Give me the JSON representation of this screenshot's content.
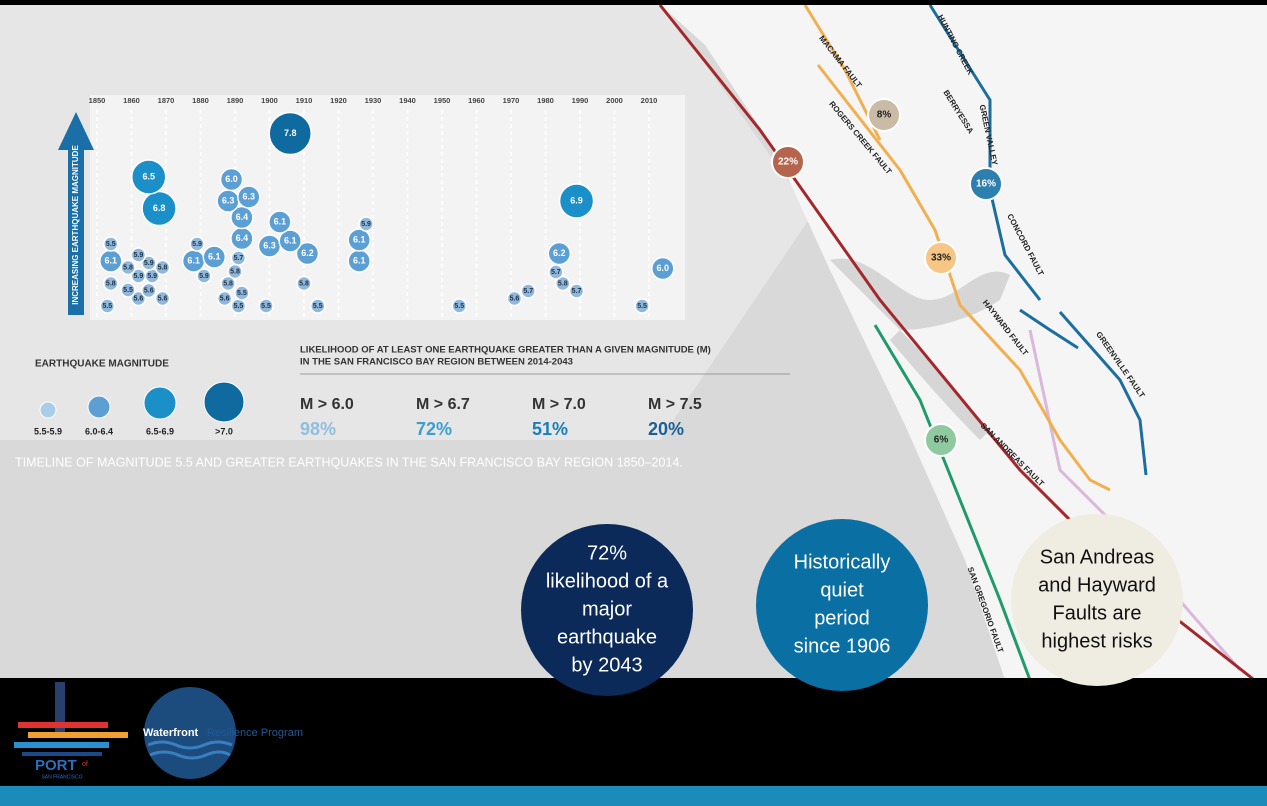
{
  "timeline": {
    "y_axis_label": "INCREASING EARTHQUAKE MAGNITUDE",
    "years": [
      1850,
      1860,
      1870,
      1880,
      1890,
      1900,
      1910,
      1920,
      1930,
      1940,
      1950,
      1960,
      1970,
      1980,
      1990,
      2000,
      2010
    ],
    "quakes": [
      {
        "year": 1906,
        "magnitude": "7.8"
      },
      {
        "year": 1989,
        "magnitude": "6.9"
      },
      {
        "year": 1868,
        "magnitude": "6.8"
      },
      {
        "year": 1865,
        "magnitude": "6.5"
      },
      {
        "year": 1892,
        "magnitude": "6.4"
      },
      {
        "year": 1892,
        "magnitude": "6.4"
      },
      {
        "year": 1888,
        "magnitude": "6.3"
      },
      {
        "year": 1894,
        "magnitude": "6.3"
      },
      {
        "year": 1900,
        "magnitude": "6.3"
      },
      {
        "year": 1911,
        "magnitude": "6.2"
      },
      {
        "year": 1984,
        "magnitude": "6.2"
      },
      {
        "year": 1854,
        "magnitude": "6.1"
      },
      {
        "year": 1878,
        "magnitude": "6.1"
      },
      {
        "year": 1884,
        "magnitude": "6.1"
      },
      {
        "year": 1906,
        "magnitude": "6.1"
      },
      {
        "year": 1903,
        "magnitude": "6.1"
      },
      {
        "year": 1926,
        "magnitude": "6.1"
      },
      {
        "year": 1926,
        "magnitude": "6.1"
      },
      {
        "year": 1889,
        "magnitude": "6.0"
      },
      {
        "year": 2014,
        "magnitude": "6.0"
      },
      {
        "year": 1866,
        "magnitude": "5.9"
      },
      {
        "year": 1862,
        "magnitude": "5.9"
      },
      {
        "year": 1865,
        "magnitude": "5.9"
      },
      {
        "year": 1862,
        "magnitude": "5.9"
      },
      {
        "year": 1879,
        "magnitude": "5.9"
      },
      {
        "year": 1881,
        "magnitude": "5.9"
      },
      {
        "year": 1928,
        "magnitude": "5.9"
      },
      {
        "year": 1854,
        "magnitude": "5.8"
      },
      {
        "year": 1859,
        "magnitude": "5.8"
      },
      {
        "year": 1869,
        "magnitude": "5.8"
      },
      {
        "year": 1888,
        "magnitude": "5.8"
      },
      {
        "year": 1890,
        "magnitude": "5.8"
      },
      {
        "year": 1910,
        "magnitude": "5.8"
      },
      {
        "year": 1985,
        "magnitude": "5.8"
      },
      {
        "year": 1891,
        "magnitude": "5.7"
      },
      {
        "year": 1975,
        "magnitude": "5.7"
      },
      {
        "year": 1983,
        "magnitude": "5.7"
      },
      {
        "year": 1989,
        "magnitude": "5.7"
      },
      {
        "year": 1862,
        "magnitude": "5.6"
      },
      {
        "year": 1865,
        "magnitude": "5.6"
      },
      {
        "year": 1869,
        "magnitude": "5.6"
      },
      {
        "year": 1887,
        "magnitude": "5.6"
      },
      {
        "year": 1971,
        "magnitude": "5.6"
      },
      {
        "year": 1853,
        "magnitude": "5.5"
      },
      {
        "year": 1854,
        "magnitude": "5.5"
      },
      {
        "year": 1859,
        "magnitude": "5.5"
      },
      {
        "year": 1891,
        "magnitude": "5.5"
      },
      {
        "year": 1892,
        "magnitude": "5.5"
      },
      {
        "year": 1899,
        "magnitude": "5.5"
      },
      {
        "year": 1914,
        "magnitude": "5.5"
      },
      {
        "year": 1955,
        "magnitude": "5.5"
      },
      {
        "year": 2008,
        "magnitude": "5.5"
      }
    ]
  },
  "legend": {
    "title": "EARTHQUAKE MAGNITUDE",
    "items": [
      "5.5-5.9",
      "6.0-6.4",
      "6.5-6.9",
      ">7.0"
    ]
  },
  "likelihood": {
    "title": [
      "LIKELIHOOD OF AT LEAST ONE EARTHQUAKE GREATER THAN A GIVEN MAGNITUDE (M)",
      "IN THE SAN FRANCISCO BAY REGION BETWEEN 2014-2043"
    ],
    "items": [
      {
        "label": "M > 6.0",
        "value": "98%"
      },
      {
        "label": "M > 6.7",
        "value": "72%"
      },
      {
        "label": "M > 7.0",
        "value": "51%"
      },
      {
        "label": "M > 7.5",
        "value": "20%"
      }
    ]
  },
  "caption": "TIMELINE OF MAGNITUDE 5.5 AND GREATER EARTHQUAKES IN THE SAN FRANCISCO BAY REGION 1850–2014.",
  "map": {
    "faults": [
      "MACAMA FAULT",
      "HUNTING CREEK",
      "BERRYESSA",
      "GREEN VALLEY",
      "ROGERS CREEK FAULT",
      "CONCORD FAULT",
      "HAYWARD FAULT",
      "GREENVILLE FAULT",
      "SAN ANDREAS FAULT",
      "SAN GREGORIO FAULT"
    ],
    "probabilities": [
      "22%",
      "8%",
      "16%",
      "33%",
      "6%"
    ]
  },
  "callouts": [
    [
      "72%",
      "likelihood of a",
      "major",
      "earthquake",
      "by 2043"
    ],
    [
      "Historically",
      "quiet",
      "period",
      "since 1906"
    ],
    [
      "San Andreas",
      "and Hayward",
      "Faults are",
      "highest risks"
    ]
  ],
  "footer": {
    "program": "Waterfront",
    "program_rest": "Resilience Program",
    "port": "PORT",
    "port_of": "of",
    "port_city": "SAN FRANCISCO"
  }
}
